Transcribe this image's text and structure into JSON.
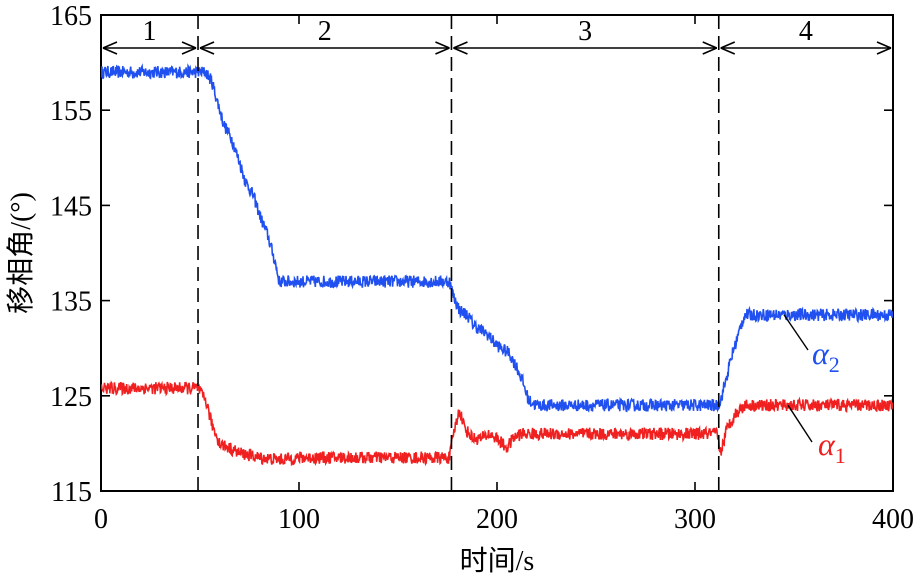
{
  "chart_data": {
    "type": "line",
    "xlabel": "时间/s",
    "ylabel": "移相角/(°)",
    "xlim": [
      0,
      400
    ],
    "ylim": [
      115,
      165
    ],
    "xticks": [
      0,
      100,
      200,
      300,
      400
    ],
    "yticks": [
      115,
      125,
      135,
      145,
      155,
      165
    ],
    "grid": false,
    "stages": [
      {
        "label": "1",
        "x_start": 0,
        "x_end": 49
      },
      {
        "label": "2",
        "x_start": 49,
        "x_end": 177
      },
      {
        "label": "3",
        "x_start": 177,
        "x_end": 312
      },
      {
        "label": "4",
        "x_start": 312,
        "x_end": 400
      }
    ],
    "stage_boundaries": [
      49,
      177,
      312
    ],
    "series": [
      {
        "name": "α2",
        "label_main": "α",
        "label_sub": "2",
        "color": "#2050f0",
        "x": [
          0,
          49,
          53,
          56,
          60,
          62,
          66,
          70,
          73,
          77,
          81,
          84,
          88,
          90,
          100,
          120,
          140,
          160,
          176,
          178,
          181,
          185,
          188,
          191,
          195,
          199,
          202,
          206,
          210,
          213,
          216,
          220,
          240,
          260,
          280,
          300,
          311,
          313,
          316,
          319,
          322,
          325,
          340,
          360,
          380,
          400
        ],
        "y": [
          159,
          159,
          159,
          158,
          155,
          153.5,
          152,
          149.5,
          147.5,
          146,
          143.5,
          142,
          139,
          137,
          137,
          137,
          137,
          137,
          137,
          135.5,
          134,
          133.5,
          132.5,
          132,
          131.5,
          130.5,
          130,
          129.5,
          128,
          126.5,
          124.5,
          124,
          124,
          124,
          124,
          124,
          124,
          124.5,
          127,
          129.5,
          131.5,
          133.5,
          133.5,
          133.5,
          133.5,
          133.5
        ]
      },
      {
        "name": "α1",
        "label_main": "α",
        "label_sub": "1",
        "color": "#f02020",
        "x": [
          0,
          49,
          51,
          53,
          56,
          60,
          65,
          70,
          80,
          90,
          100,
          120,
          140,
          160,
          176,
          178,
          181,
          184,
          188,
          192,
          196,
          200,
          205,
          208,
          212,
          216,
          220,
          240,
          260,
          280,
          300,
          311,
          313,
          316,
          320,
          325,
          340,
          360,
          380,
          400
        ],
        "y": [
          125.8,
          125.8,
          125,
          124.5,
          122,
          120,
          119.5,
          119,
          118.5,
          118.3,
          118.5,
          118.5,
          118.5,
          118.5,
          118.5,
          121,
          123.5,
          121.5,
          120.5,
          120.5,
          121,
          120.5,
          119.5,
          120.5,
          121,
          121,
          121,
          121,
          121,
          121,
          121,
          121,
          119,
          121.5,
          123,
          124,
          124,
          124,
          124,
          124
        ]
      }
    ]
  }
}
